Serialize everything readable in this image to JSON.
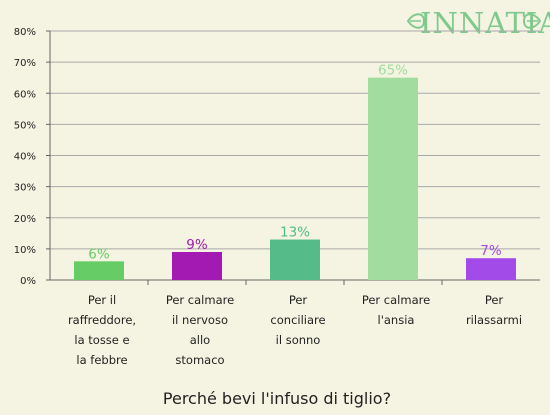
{
  "logo": {
    "text": "INNATIA"
  },
  "chart_data": {
    "type": "bar",
    "title": "Perché bevi l'infuso di tiglio?",
    "xlabel": "",
    "ylabel": "",
    "ylim": [
      0,
      80
    ],
    "yticks": [
      "0%",
      "10%",
      "20%",
      "30%",
      "40%",
      "50%",
      "60%",
      "70%",
      "80%"
    ],
    "grid": true,
    "categories": [
      [
        "Per il",
        "raffreddore,",
        "la tosse e",
        "la febbre"
      ],
      [
        "Per calmare",
        "il nervoso",
        "allo",
        "stomaco"
      ],
      [
        "Per",
        "conciliare",
        "il sonno"
      ],
      [
        "Per calmare",
        "l'ansia"
      ],
      [
        "Per",
        "rilassarmi"
      ]
    ],
    "values": [
      6,
      9,
      13,
      65,
      7
    ],
    "value_labels": [
      "6%",
      "9%",
      "13%",
      "65%",
      "7%"
    ],
    "bar_colors": [
      "#66cc66",
      "#a21ab2",
      "#55bb88",
      "#a2dc9e",
      "#a24be8"
    ],
    "label_colors": [
      "#66cc66",
      "#a21ab2",
      "#55bb88",
      "#a2dc9e",
      "#a24be8"
    ]
  }
}
